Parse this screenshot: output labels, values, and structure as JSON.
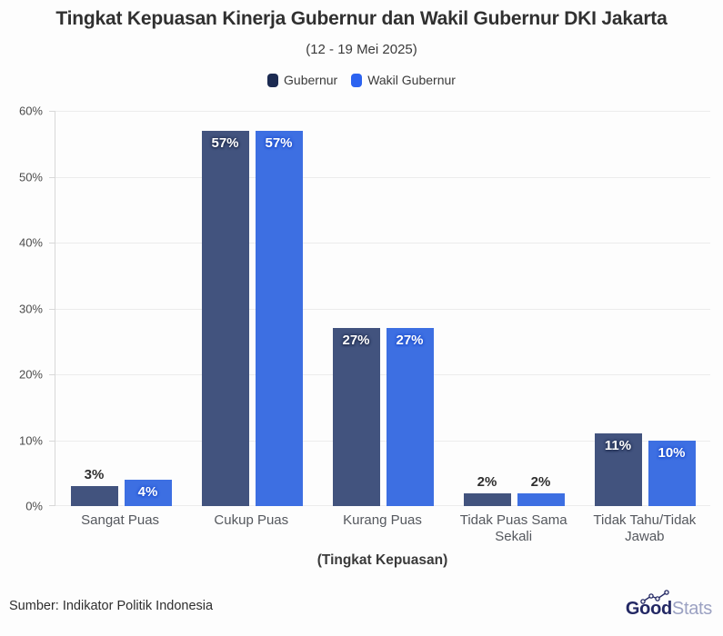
{
  "title": "Tingkat Kepuasan Kinerja Gubernur dan Wakil Gubernur DKI Jakarta",
  "subtitle": "(12 - 19 Mei 2025)",
  "legend": [
    {
      "label": "Gubernur",
      "color": "#1C2B52"
    },
    {
      "label": "Wakil Gubernur",
      "color": "#2C63F0"
    }
  ],
  "chart_data": {
    "type": "bar",
    "categories": [
      "Sangat Puas",
      "Cukup Puas",
      "Kurang Puas",
      "Tidak Puas Sama Sekali",
      "Tidak Tahu/Tidak Jawab"
    ],
    "series": [
      {
        "name": "Gubernur",
        "color": "#42537E",
        "label_glow": "#222F52",
        "values": [
          3,
          57,
          27,
          2,
          11
        ]
      },
      {
        "name": "Wakil Gubernur",
        "color": "#3D6FE2",
        "label_glow": "#2050CF",
        "values": [
          4,
          57,
          27,
          2,
          10
        ]
      }
    ],
    "title": "Tingkat Kepuasan Kinerja Gubernur dan Wakil Gubernur DKI Jakarta",
    "xlabel": "(Tingkat Kepuasan)",
    "ylabel": "",
    "ylim": [
      0,
      60
    ],
    "ytick_step": 10,
    "ytick_suffix": "%",
    "value_suffix": "%",
    "grid": true,
    "legend_position": "top"
  },
  "footer": {
    "source": "Sumber: Indikator Politik Indonesia",
    "logo": {
      "bold": "Good",
      "light": "Stats"
    }
  }
}
